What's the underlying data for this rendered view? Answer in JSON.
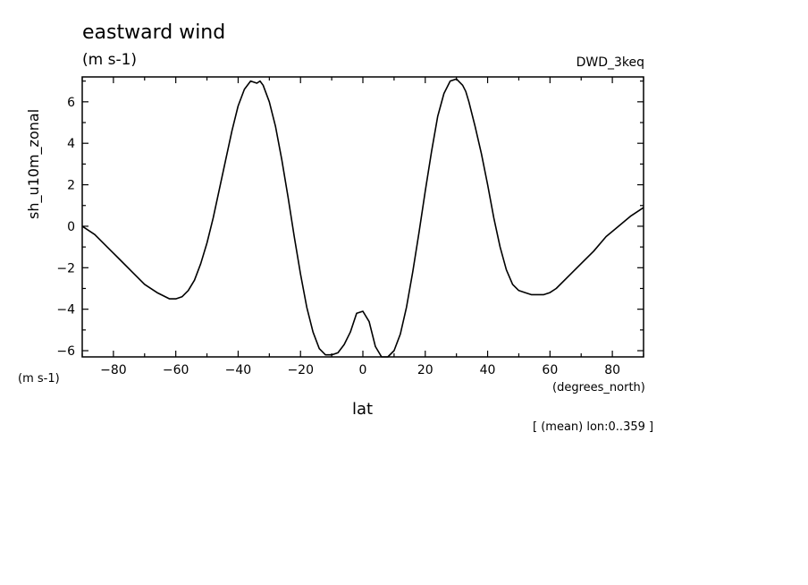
{
  "chart_data": {
    "type": "line",
    "title": "eastward wind",
    "title_units": "(m s-1)",
    "dataset": "DWD_3keq",
    "ylabel": "sh_u10m_zonal",
    "ylabel_units": "(m s-1)",
    "xlabel": "lat",
    "xlabel_units": "(degrees_north)",
    "footnote": "[ (mean) lon:0..359 ]",
    "xlim": [
      -90,
      90
    ],
    "ylim": [
      -6.3,
      7.2
    ],
    "xticks": [
      -80,
      -60,
      -40,
      -20,
      0,
      20,
      40,
      60,
      80
    ],
    "yticks": [
      -6,
      -4,
      -2,
      0,
      2,
      4,
      6
    ],
    "grid": false,
    "series": [
      {
        "color": "#000000",
        "x": [
          -90,
          -86,
          -82,
          -78,
          -74,
          -70,
          -66,
          -62,
          -60,
          -58,
          -56,
          -54,
          -52,
          -50,
          -48,
          -46,
          -44,
          -42,
          -40,
          -38,
          -36,
          -34,
          -33,
          -32,
          -30,
          -28,
          -26,
          -24,
          -22,
          -20,
          -18,
          -16,
          -14,
          -12,
          -10,
          -8,
          -6,
          -4,
          -2,
          0,
          2,
          4,
          6,
          8,
          10,
          12,
          14,
          16,
          18,
          20,
          22,
          24,
          26,
          28,
          30,
          32,
          33,
          34,
          36,
          38,
          40,
          42,
          44,
          46,
          48,
          50,
          52,
          54,
          56,
          58,
          60,
          62,
          66,
          70,
          74,
          78,
          82,
          86,
          90
        ],
        "y": [
          0.0,
          -0.4,
          -1.0,
          -1.6,
          -2.2,
          -2.8,
          -3.2,
          -3.5,
          -3.5,
          -3.4,
          -3.1,
          -2.6,
          -1.8,
          -0.8,
          0.4,
          1.8,
          3.2,
          4.6,
          5.8,
          6.6,
          7.0,
          6.9,
          7.0,
          6.8,
          6.0,
          4.8,
          3.2,
          1.4,
          -0.5,
          -2.3,
          -3.9,
          -5.1,
          -5.9,
          -6.2,
          -6.2,
          -6.1,
          -5.7,
          -5.1,
          -4.2,
          -4.1,
          -4.6,
          -5.8,
          -6.3,
          -6.3,
          -6.0,
          -5.2,
          -3.9,
          -2.2,
          -0.3,
          1.7,
          3.6,
          5.3,
          6.4,
          7.0,
          7.1,
          6.8,
          6.5,
          6.0,
          4.8,
          3.5,
          2.0,
          0.4,
          -1.0,
          -2.1,
          -2.8,
          -3.1,
          -3.2,
          -3.3,
          -3.3,
          -3.3,
          -3.2,
          -3.0,
          -2.4,
          -1.8,
          -1.2,
          -0.5,
          0.0,
          0.5,
          0.9
        ]
      }
    ]
  }
}
